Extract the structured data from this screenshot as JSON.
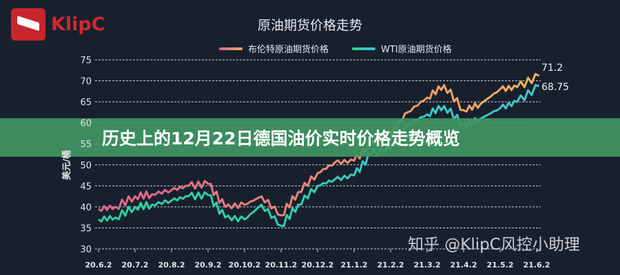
{
  "logo": {
    "text": "KlipC"
  },
  "banner": {
    "text": "历史上的12月22日德国油价实时价格走势概览"
  },
  "watermark": "知乎 @KlipC风控小助理",
  "chart_data": {
    "type": "line",
    "title": "原油期货价格走势",
    "ylabel": "美元/桶",
    "xlabel": "",
    "ylim": [
      30,
      75
    ],
    "yticks": [
      30,
      35,
      40,
      45,
      50,
      55,
      60,
      65,
      70,
      75
    ],
    "xticks": [
      "20.6.2",
      "20.7.2",
      "20.8.2",
      "20.9.2",
      "20.10.2",
      "20.11.2",
      "20.12.2",
      "21.1.2",
      "21.2.2",
      "21.3.2",
      "21.4.2",
      "21.5.2",
      "21.6.2"
    ],
    "grid": true,
    "legend": "top",
    "x": [
      "20.6.2",
      "20.6.16",
      "20.7.2",
      "20.7.16",
      "20.8.2",
      "20.8.16",
      "20.9.2",
      "20.9.16",
      "20.10.2",
      "20.10.16",
      "20.11.2",
      "20.11.16",
      "20.12.2",
      "20.12.16",
      "21.1.2",
      "21.1.16",
      "21.2.2",
      "21.2.16",
      "21.3.2",
      "21.3.16",
      "21.4.2",
      "21.4.16",
      "21.5.2",
      "21.5.16",
      "21.6.4"
    ],
    "series": [
      {
        "name": "布伦特原油期货价格",
        "colors": [
          "#e0628c",
          "#f2b35c"
        ],
        "end_label": "71.2",
        "values": [
          39.5,
          40,
          42.5,
          43,
          44,
          45,
          45.5,
          40,
          40.5,
          42.5,
          38,
          43.5,
          48,
          50.5,
          51,
          55,
          57.5,
          62.5,
          66,
          69,
          63,
          64.5,
          68,
          68.5,
          71.2
        ]
      },
      {
        "name": "WTI原油期货价格",
        "colors": [
          "#2ecf9a",
          "#3cc8d0"
        ],
        "end_label": "68.75",
        "values": [
          37,
          37.5,
          40,
          40.5,
          41.5,
          42.5,
          42.8,
          37.5,
          37,
          40.5,
          35.5,
          40.5,
          45,
          46.5,
          47.5,
          52.5,
          54,
          59.5,
          62,
          64,
          59.5,
          61,
          63.5,
          65,
          68.75
        ]
      }
    ]
  }
}
